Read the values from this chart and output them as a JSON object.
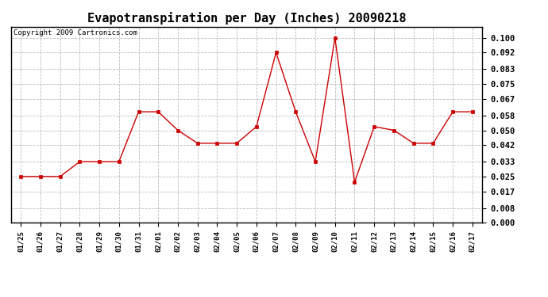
{
  "title": "Evapotranspiration per Day (Inches) 20090218",
  "copyright_text": "Copyright 2009 Cartronics.com",
  "x_labels": [
    "01/25",
    "01/26",
    "01/27",
    "01/28",
    "01/29",
    "01/30",
    "01/31",
    "02/01",
    "02/02",
    "02/03",
    "02/04",
    "02/05",
    "02/06",
    "02/07",
    "02/08",
    "02/09",
    "02/10",
    "02/11",
    "02/12",
    "02/13",
    "02/14",
    "02/15",
    "02/16",
    "02/17"
  ],
  "y_values": [
    0.025,
    0.025,
    0.025,
    0.033,
    0.033,
    0.033,
    0.06,
    0.06,
    0.05,
    0.043,
    0.043,
    0.043,
    0.052,
    0.092,
    0.06,
    0.033,
    0.1,
    0.022,
    0.052,
    0.05,
    0.043,
    0.043,
    0.06,
    0.06
  ],
  "y_ticks": [
    0.0,
    0.008,
    0.017,
    0.025,
    0.033,
    0.042,
    0.05,
    0.058,
    0.067,
    0.075,
    0.083,
    0.092,
    0.1
  ],
  "ylim": [
    0.0,
    0.106
  ],
  "line_color": "#cc0000",
  "marker_color": "#cc0000",
  "bg_color": "#ffffff",
  "grid_color": "#bbbbbb",
  "title_fontsize": 11,
  "copyright_fontsize": 6.5,
  "tick_fontsize": 7.5,
  "xtick_fontsize": 6.5
}
